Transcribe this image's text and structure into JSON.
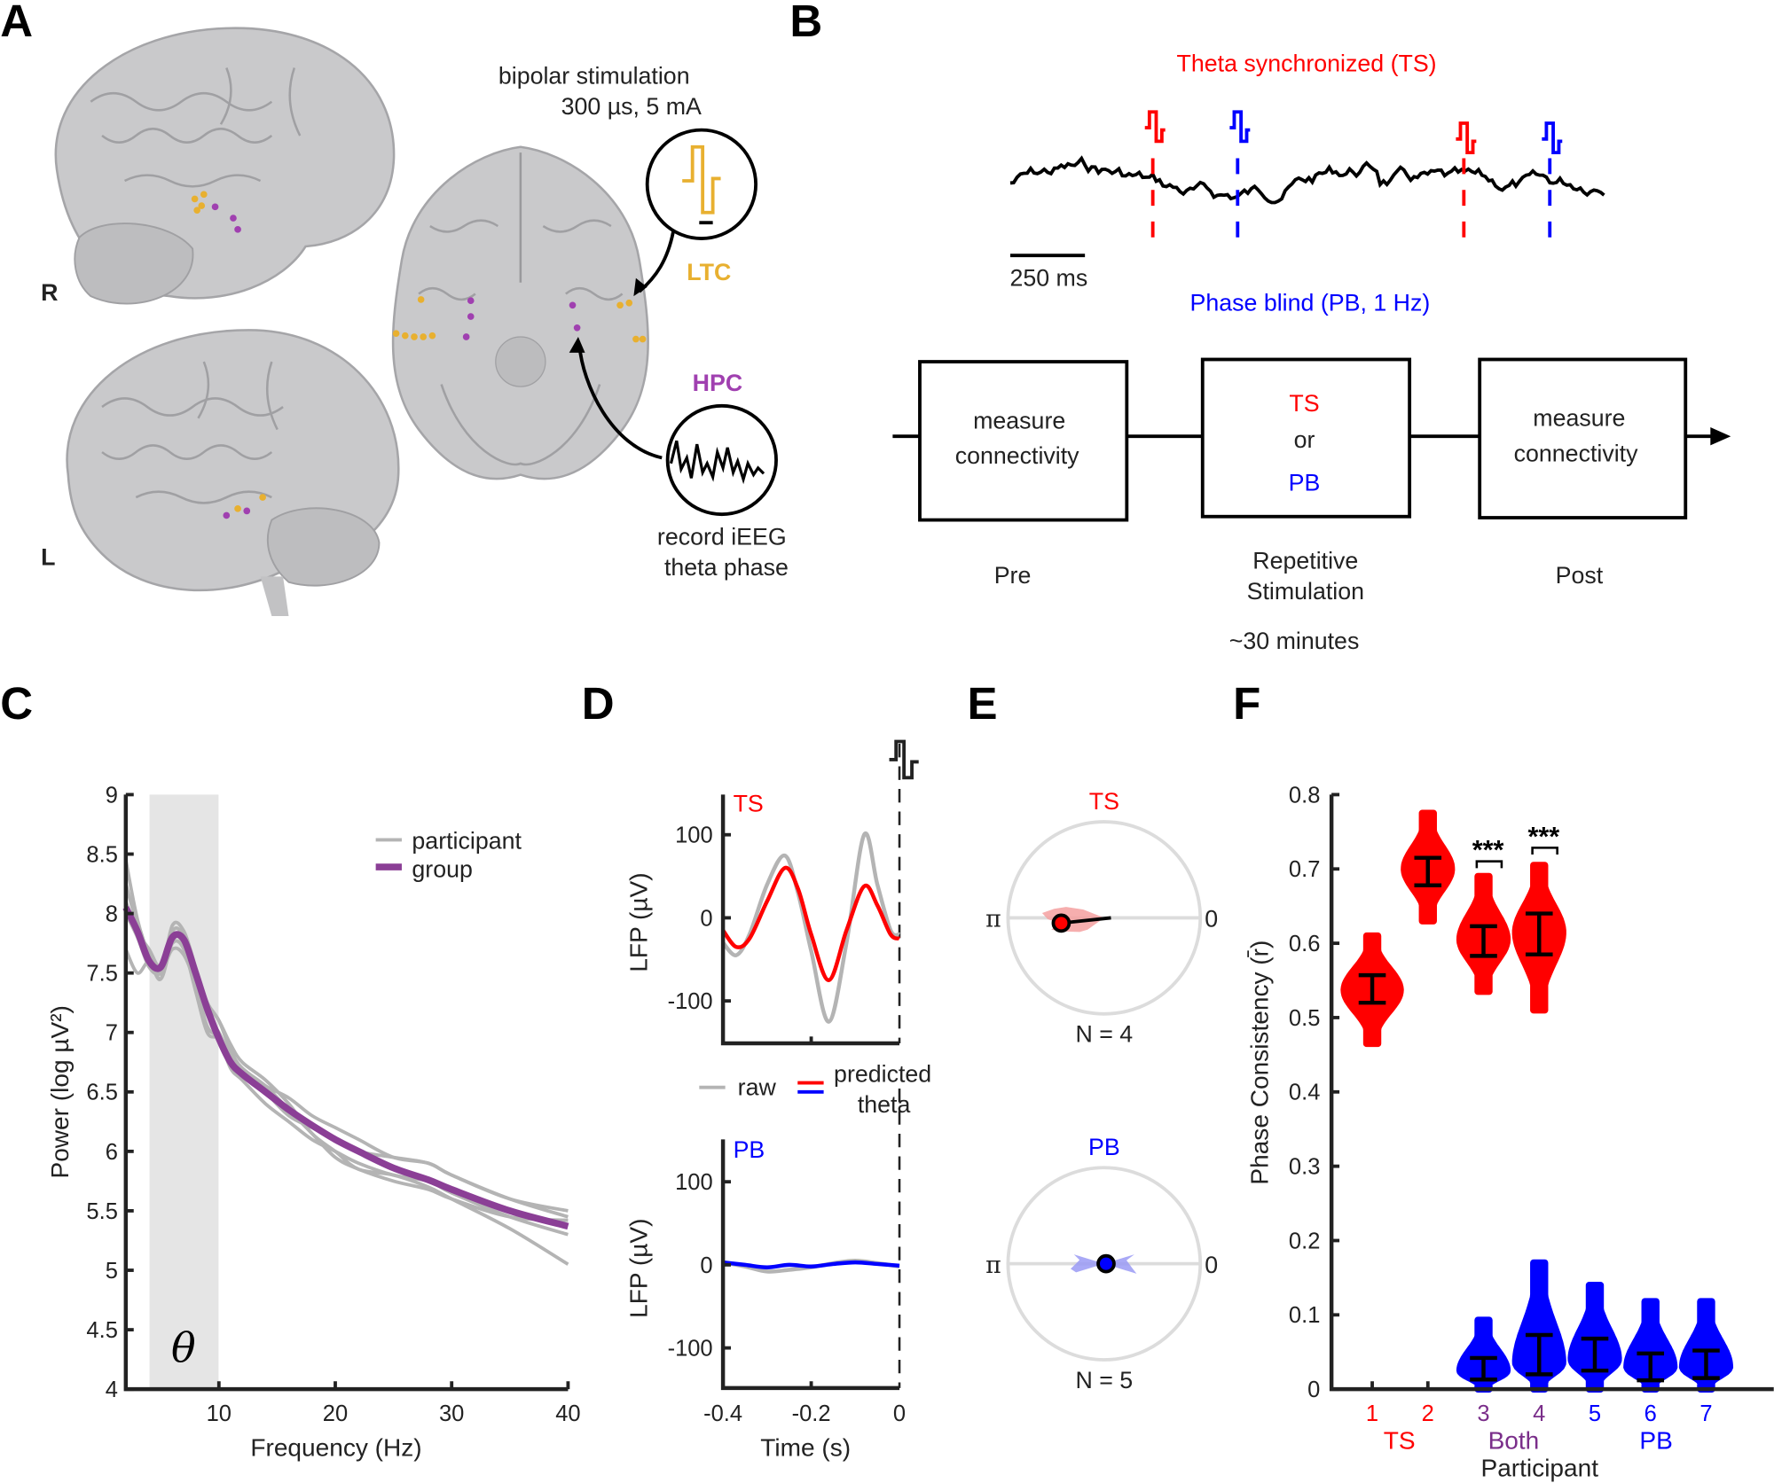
{
  "panels": {
    "A": "A",
    "B": "B",
    "C": "C",
    "D": "D",
    "E": "E",
    "F": "F"
  },
  "panel_a": {
    "stim_line1": "bipolar stimulation",
    "stim_line2": "300 µs, 5 mA",
    "ltc": "LTC",
    "hpc": "HPC",
    "record_line1": "record iEEG",
    "record_line2": "theta phase",
    "hemi_r": "R",
    "hemi_l": "L",
    "colors": {
      "ltc": "#e8b030",
      "hpc": "#a040b0",
      "brain": "#c9c9cb"
    }
  },
  "panel_b": {
    "ts_title": "Theta synchronized (TS)",
    "pb_title": "Phase blind (PB, 1 Hz)",
    "scale_bar": "250 ms",
    "boxes": [
      {
        "line1": "measure",
        "line2": "connectivity",
        "caption1": "Pre",
        "caption2": ""
      },
      {
        "line1": "TS",
        "mid": "or",
        "line2": "PB",
        "caption1": "Repetitive",
        "caption2": "Stimulation"
      },
      {
        "line1": "measure",
        "line2": "connectivity",
        "caption1": "Post",
        "caption2": ""
      }
    ],
    "duration": "~30 minutes",
    "colors": {
      "ts": "#ff0000",
      "pb": "#0000ff"
    }
  },
  "chart_data": [
    {
      "id": "C",
      "type": "line",
      "xlabel": "Frequency (Hz)",
      "ylabel": "Power (log µV²)",
      "xlim": [
        2,
        40
      ],
      "ylim": [
        4,
        9
      ],
      "xticks": [
        "10",
        "20",
        "30",
        "40"
      ],
      "yticks": [
        "4",
        "4.5",
        "5",
        "5.5",
        "6",
        "6.5",
        "7",
        "7.5",
        "8",
        "8.5",
        "9"
      ],
      "shaded_band": {
        "from": 4,
        "to": 10,
        "label": "θ"
      },
      "legend": {
        "position": "top-right",
        "entries": [
          "participant",
          "group"
        ]
      },
      "x": [
        2,
        3,
        4,
        5,
        6,
        7,
        8,
        9,
        10,
        11,
        12,
        14,
        16,
        18,
        20,
        22,
        25,
        28,
        30,
        35,
        40
      ],
      "series": [
        {
          "name": "group",
          "color": "#8b3f96",
          "values": [
            8.05,
            7.85,
            7.6,
            7.55,
            7.8,
            7.78,
            7.5,
            7.2,
            6.95,
            6.75,
            6.65,
            6.5,
            6.35,
            6.22,
            6.1,
            6.0,
            5.86,
            5.76,
            5.68,
            5.5,
            5.37
          ]
        },
        {
          "name": "participant",
          "color": "#b4b4b4",
          "values": [
            8.45,
            7.95,
            7.65,
            7.45,
            7.85,
            7.8,
            7.45,
            7.15,
            7.0,
            6.8,
            6.7,
            6.55,
            6.45,
            6.3,
            6.2,
            6.1,
            5.95,
            5.9,
            5.8,
            5.6,
            5.45
          ]
        },
        {
          "name": "participant",
          "color": "#b4b4b4",
          "values": [
            7.7,
            7.5,
            7.6,
            7.5,
            7.9,
            7.85,
            7.55,
            7.25,
            7.1,
            6.9,
            6.75,
            6.6,
            6.4,
            6.15,
            6.0,
            5.85,
            5.8,
            5.7,
            5.6,
            5.35,
            5.05
          ]
        },
        {
          "name": "participant",
          "color": "#b4b4b4",
          "values": [
            8.0,
            7.8,
            7.55,
            7.5,
            7.7,
            7.65,
            7.4,
            7.05,
            6.95,
            6.7,
            6.6,
            6.4,
            6.25,
            6.1,
            6.0,
            5.9,
            5.8,
            5.75,
            5.65,
            5.45,
            5.3
          ]
        },
        {
          "name": "participant",
          "color": "#b4b4b4",
          "values": [
            8.25,
            7.9,
            7.65,
            7.45,
            7.75,
            7.7,
            7.35,
            7.0,
            6.95,
            6.8,
            6.7,
            6.5,
            6.3,
            6.2,
            6.1,
            6.0,
            5.95,
            5.9,
            5.8,
            5.6,
            5.5
          ]
        },
        {
          "name": "participant",
          "color": "#b4b4b4",
          "values": [
            8.1,
            7.85,
            7.7,
            7.55,
            7.8,
            7.75,
            7.5,
            7.25,
            7.1,
            6.85,
            6.7,
            6.55,
            6.35,
            6.15,
            5.95,
            5.85,
            5.75,
            5.68,
            5.6,
            5.45,
            5.42
          ]
        }
      ]
    },
    {
      "id": "D-TS",
      "type": "line",
      "label": "TS",
      "ylabel": "LFP (µV)",
      "xlim": [
        -0.4,
        0
      ],
      "ylim": [
        -150,
        150
      ],
      "yticks": [
        "-100",
        "0",
        "100"
      ],
      "x": [
        -0.4,
        -0.37,
        -0.34,
        -0.3,
        -0.26,
        -0.23,
        -0.2,
        -0.16,
        -0.12,
        -0.08,
        -0.05,
        -0.02,
        0
      ],
      "series": [
        {
          "name": "raw",
          "color": "#b4b4b4",
          "values": [
            -30,
            -45,
            -20,
            40,
            75,
            30,
            -40,
            -125,
            -30,
            100,
            40,
            -15,
            -20
          ]
        },
        {
          "name": "predicted theta",
          "color": "#ff0000",
          "values": [
            -15,
            -35,
            -25,
            20,
            60,
            35,
            -20,
            -75,
            -15,
            38,
            15,
            -20,
            -25
          ]
        }
      ]
    },
    {
      "id": "D-PB",
      "type": "line",
      "label": "PB",
      "ylabel": "LFP (µV)",
      "xlabel": "Time (s)",
      "xlim": [
        -0.4,
        0
      ],
      "ylim": [
        -150,
        150
      ],
      "xticks": [
        "-0.4",
        "-0.2",
        "0"
      ],
      "yticks": [
        "-100",
        "0",
        "100"
      ],
      "legend": {
        "entries": [
          "raw",
          "predicted",
          "theta"
        ]
      },
      "x": [
        -0.4,
        -0.35,
        -0.3,
        -0.25,
        -0.2,
        -0.15,
        -0.1,
        -0.05,
        0
      ],
      "series": [
        {
          "name": "raw",
          "color": "#b4b4b4",
          "values": [
            3,
            -2,
            -8,
            -6,
            -3,
            2,
            5,
            2,
            -2
          ]
        },
        {
          "name": "predicted theta",
          "color": "#0000ff",
          "values": [
            3,
            0,
            -3,
            0,
            -2,
            1,
            3,
            1,
            -1
          ]
        }
      ]
    },
    {
      "id": "E-TS",
      "type": "polar",
      "label": "TS",
      "n_label": "N = 4",
      "angle_labels": [
        "π",
        "0"
      ],
      "mean_angle_deg": 187,
      "mean_length": 0.45,
      "color": "#ff0000",
      "fill": "#f4a0a0"
    },
    {
      "id": "E-PB",
      "type": "polar",
      "label": "PB",
      "n_label": "N = 5",
      "angle_labels": [
        "π",
        "0"
      ],
      "mean_angle_deg": 0,
      "mean_length": 0.02,
      "color": "#0000ff",
      "fill": "#9a9af4"
    },
    {
      "id": "F",
      "type": "violin",
      "ylabel": "Phase Consistency (r̄)",
      "xlabel": "Participant",
      "ylim": [
        0,
        0.8
      ],
      "yticks": [
        "0",
        "0.1",
        "0.2",
        "0.3",
        "0.4",
        "0.5",
        "0.6",
        "0.7",
        "0.8"
      ],
      "xticks": [
        {
          "label": "1",
          "color": "#ff0000"
        },
        {
          "label": "2",
          "color": "#ff0000"
        },
        {
          "label": "3",
          "color": "#7a2e8a"
        },
        {
          "label": "4",
          "color": "#7a2e8a"
        },
        {
          "label": "5",
          "color": "#0000ff"
        },
        {
          "label": "6",
          "color": "#0000ff"
        },
        {
          "label": "7",
          "color": "#0000ff"
        }
      ],
      "groups": [
        {
          "label": "TS",
          "color": "#ff0000"
        },
        {
          "label": "Both",
          "color": "#7a2e8a"
        },
        {
          "label": "PB",
          "color": "#0000ff"
        }
      ],
      "significance": [
        {
          "participant": 3,
          "label": "***"
        },
        {
          "participant": 4,
          "label": "***"
        }
      ],
      "violins": [
        {
          "participant": 1,
          "condition": "TS",
          "color": "#ff0000",
          "min": 0.465,
          "max": 0.61,
          "center": 0.537,
          "ci": [
            0.52,
            0.557
          ]
        },
        {
          "participant": 2,
          "condition": "TS",
          "color": "#ff0000",
          "min": 0.63,
          "max": 0.775,
          "center": 0.7,
          "ci": [
            0.678,
            0.715
          ]
        },
        {
          "participant": 3,
          "condition": "TS",
          "color": "#ff0000",
          "min": 0.535,
          "max": 0.69,
          "center": 0.605,
          "ci": [
            0.583,
            0.623
          ]
        },
        {
          "participant": 4,
          "condition": "TS",
          "color": "#ff0000",
          "min": 0.51,
          "max": 0.705,
          "center": 0.615,
          "ci": [
            0.585,
            0.64
          ]
        },
        {
          "participant": 3,
          "condition": "PB",
          "color": "#0000ff",
          "min": 0.0,
          "max": 0.093,
          "center": 0.025,
          "ci": [
            0.013,
            0.042
          ]
        },
        {
          "participant": 4,
          "condition": "PB",
          "color": "#0000ff",
          "min": 0.0,
          "max": 0.17,
          "center": 0.035,
          "ci": [
            0.02,
            0.073
          ]
        },
        {
          "participant": 5,
          "condition": "PB",
          "color": "#0000ff",
          "min": 0.0,
          "max": 0.14,
          "center": 0.04,
          "ci": [
            0.025,
            0.068
          ]
        },
        {
          "participant": 6,
          "condition": "PB",
          "color": "#0000ff",
          "min": 0.0,
          "max": 0.118,
          "center": 0.03,
          "ci": [
            0.012,
            0.048
          ]
        },
        {
          "participant": 7,
          "condition": "PB",
          "color": "#0000ff",
          "min": 0.0,
          "max": 0.118,
          "center": 0.03,
          "ci": [
            0.015,
            0.052
          ]
        }
      ]
    }
  ]
}
